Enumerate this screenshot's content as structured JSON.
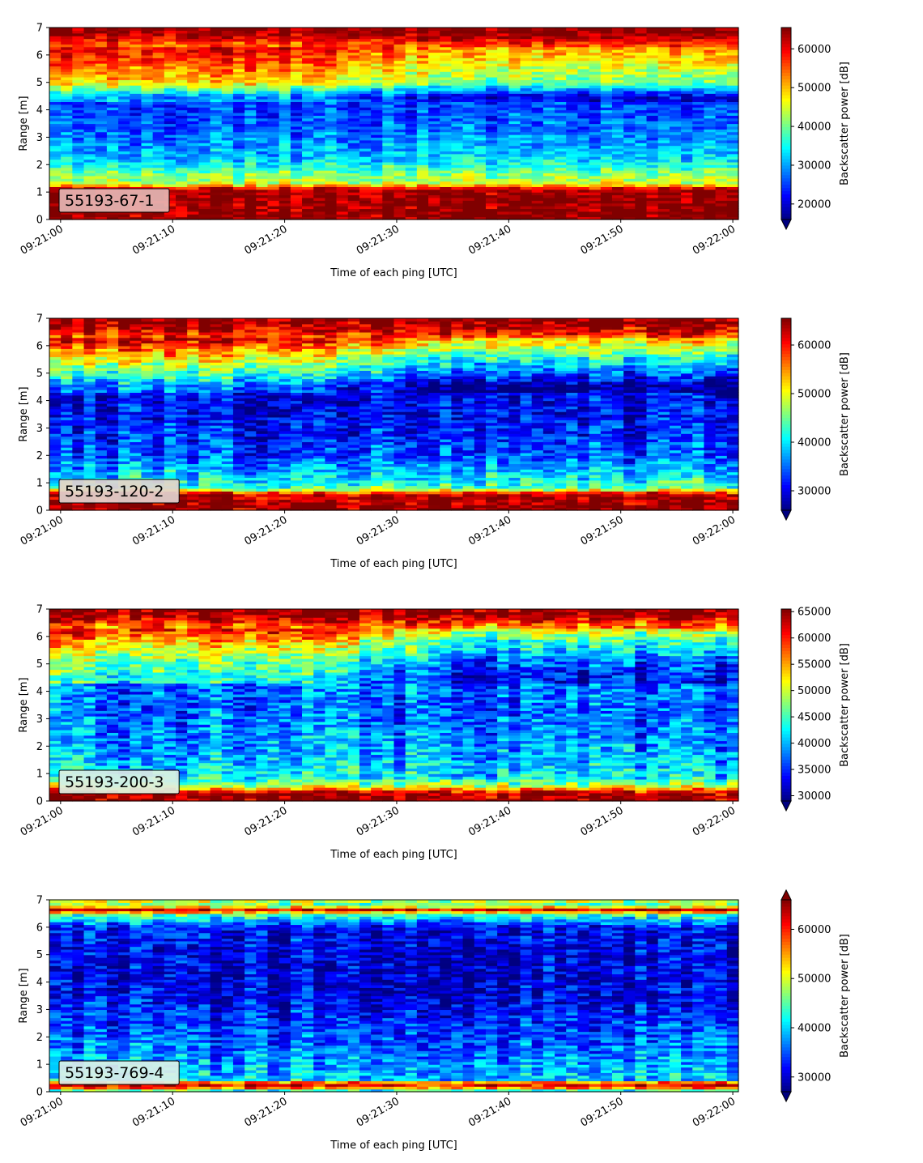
{
  "chart_data": [
    {
      "type": "heatmap",
      "colormap": "jet",
      "label": "55193-67-1",
      "label_box_color": "#e6b6b4",
      "xlabel": "Time of each ping [UTC]",
      "ylabel": "Range [m]",
      "x_ticks": [
        "09:21:00",
        "09:21:10",
        "09:21:20",
        "09:21:30",
        "09:21:40",
        "09:21:50",
        "09:22:00"
      ],
      "x_range_seconds": [
        -1,
        60.5
      ],
      "y_ticks": [
        0,
        1,
        2,
        3,
        4,
        5,
        6,
        7
      ],
      "ylim": [
        0,
        7
      ],
      "colorbar": {
        "label": "Backscatter power [dB]",
        "vmin": 16000,
        "vmax": 65500,
        "ticks": [
          20000,
          30000,
          40000,
          50000,
          60000
        ],
        "extend": "min"
      },
      "profile_anchors": [
        [
          0,
          65000
        ],
        [
          1.1,
          64000
        ],
        [
          1.3,
          45000
        ],
        [
          1.7,
          40000
        ],
        [
          2.2,
          32000
        ],
        [
          3.3,
          27000
        ],
        [
          4.5,
          24000
        ],
        [
          5.0,
          43000
        ],
        [
          5.7,
          50000
        ],
        [
          6.4,
          56000
        ],
        [
          6.8,
          65000
        ],
        [
          7,
          65000
        ]
      ],
      "gradient_note": "strong return band near 6-7 m weakening after 09:21:20"
    },
    {
      "type": "heatmap",
      "colormap": "jet",
      "label": "55193-120-2",
      "label_box_color": "#e2d4cf",
      "xlabel": "Time of each ping [UTC]",
      "ylabel": "Range [m]",
      "x_ticks": [
        "09:21:00",
        "09:21:10",
        "09:21:20",
        "09:21:30",
        "09:21:40",
        "09:21:50",
        "09:22:00"
      ],
      "x_range_seconds": [
        -1,
        60.5
      ],
      "y_ticks": [
        0,
        1,
        2,
        3,
        4,
        5,
        6,
        7
      ],
      "ylim": [
        0,
        7
      ],
      "colorbar": {
        "label": "Backscatter power [dB]",
        "vmin": 26000,
        "vmax": 65500,
        "ticks": [
          30000,
          40000,
          50000,
          60000
        ],
        "extend": "min"
      },
      "profile_anchors": [
        [
          0,
          65000
        ],
        [
          0.6,
          64000
        ],
        [
          0.8,
          44000
        ],
        [
          1.2,
          40000
        ],
        [
          2.0,
          34000
        ],
        [
          3.5,
          31000
        ],
        [
          4.5,
          30000
        ],
        [
          5.0,
          38000
        ],
        [
          5.6,
          46000
        ],
        [
          6.2,
          56000
        ],
        [
          6.8,
          65000
        ],
        [
          7,
          65000
        ]
      ],
      "gradient_note": "bright echo between 4.5 and 6.5 m early, decaying after 09:21:20"
    },
    {
      "type": "heatmap",
      "colormap": "jet",
      "label": "55193-200-3",
      "label_box_color": "#dcefe4",
      "xlabel": "Time of each ping [UTC]",
      "ylabel": "Range [m]",
      "x_ticks": [
        "09:21:00",
        "09:21:10",
        "09:21:20",
        "09:21:30",
        "09:21:40",
        "09:21:50",
        "09:22:00"
      ],
      "x_range_seconds": [
        -1,
        60.5
      ],
      "y_ticks": [
        0,
        1,
        2,
        3,
        4,
        5,
        6,
        7
      ],
      "ylim": [
        0,
        7
      ],
      "colorbar": {
        "label": "Backscatter power [dB]",
        "vmin": 29000,
        "vmax": 65500,
        "ticks": [
          30000,
          35000,
          40000,
          45000,
          50000,
          55000,
          60000,
          65000
        ],
        "extend": "min"
      },
      "profile_anchors": [
        [
          0,
          65000
        ],
        [
          0.3,
          64000
        ],
        [
          0.55,
          50000
        ],
        [
          0.9,
          42000
        ],
        [
          2.0,
          39000
        ],
        [
          3.5,
          37000
        ],
        [
          4.5,
          37500
        ],
        [
          5.2,
          42000
        ],
        [
          5.8,
          48000
        ],
        [
          6.4,
          57000
        ],
        [
          6.8,
          65000
        ],
        [
          7,
          65000
        ]
      ],
      "gradient_note": "diffuse echo between 5 and 7 m, patches of higher backscatter"
    },
    {
      "type": "heatmap",
      "colormap": "jet",
      "label": "55193-769-4",
      "label_box_color": "#dcefe8",
      "xlabel": "Time of each ping [UTC]",
      "ylabel": "Range [m]",
      "x_ticks": [
        "09:21:00",
        "09:21:10",
        "09:21:20",
        "09:21:30",
        "09:21:40",
        "09:21:50",
        "09:22:00"
      ],
      "x_range_seconds": [
        -1,
        60.5
      ],
      "y_ticks": [
        0,
        1,
        2,
        3,
        4,
        5,
        6,
        7
      ],
      "ylim": [
        0,
        7
      ],
      "colorbar": {
        "label": "Backscatter power [dB]",
        "vmin": 27000,
        "vmax": 66000,
        "ticks": [
          30000,
          40000,
          50000,
          60000
        ],
        "extend": "both"
      },
      "profile_anchors": [
        [
          0,
          38000
        ],
        [
          0.15,
          56000
        ],
        [
          0.3,
          64000
        ],
        [
          0.45,
          40000
        ],
        [
          1.0,
          38000
        ],
        [
          2.0,
          35000
        ],
        [
          3.5,
          31000
        ],
        [
          5.0,
          30500
        ],
        [
          6.0,
          32000
        ],
        [
          6.45,
          44000
        ],
        [
          6.65,
          63000
        ],
        [
          6.8,
          45000
        ],
        [
          7,
          50000
        ]
      ],
      "gradient_note": "mostly low backscatter with a thin bright layer near 6.6 m"
    }
  ]
}
